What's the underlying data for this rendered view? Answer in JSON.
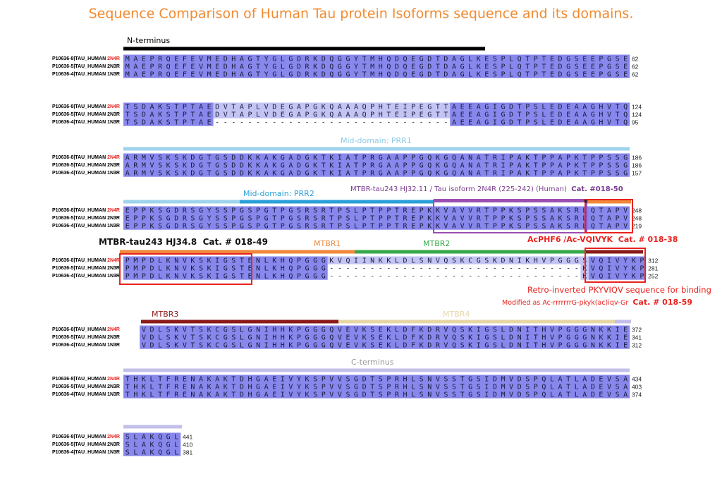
{
  "title": "Sequence Comparison of Human Tau protein Isoforms sequence and its domains.",
  "isoforms": [
    {
      "id": "P10636-8|TAU_HUMAN",
      "name": "2N4R",
      "color": "#e8231f"
    },
    {
      "id": "P10636-5|TAU_HUMAN",
      "name": "2N3R",
      "color": "#000000"
    },
    {
      "id": "P10636-4|TAU_HUMAN",
      "name": "1N3R",
      "color": "#000000"
    }
  ],
  "blocks": [
    {
      "rows": [
        {
          "sequence": "MAEPRQEFEVMEDHAGTYGLGDRKDQGGYTMHQDQEGDTDAGLKESPLQTPTEDGSEEPGSE",
          "end": 62
        },
        {
          "sequence": "MAEPRQEFEVMEDHAGTYGLGDRKDQGGYTMHQDQEGDTDAGLKESPLQTPTEDGSEEPGSE",
          "end": 62
        },
        {
          "sequence": "MAEPRQEFEVMEDHAGTYGLGDRKDQGGYTMHQDQEGDTDAGLKESPLQTPTEDGSEEPGSE",
          "end": 62
        }
      ]
    },
    {
      "rows": [
        {
          "sequence": "TSDAKSTPTAEDVTAPLVDEGAPGKQAAAQPHTEIPEGTTAEEAGIGDTPSLEDEAAGHVTQ",
          "end": 124
        },
        {
          "sequence": "TSDAKSTPTAEDVTAPLVDEGAPGKQAAAQPHTEIPEGTTAEEAGIGDTPSLEDEAAGHVTQ",
          "end": 124
        },
        {
          "sequence": "TSDAKSTPTAE-----------------------------AEEAGIGDTPSLEDEAAGHVTQ",
          "end": 95
        }
      ]
    },
    {
      "rows": [
        {
          "sequence": "ARMVSKSKDGTGSDDKKAKGADGKTKIATPRGAAPPGQKGQANATRIPAKTPPAPKTPPSSG",
          "end": 186
        },
        {
          "sequence": "ARMVSKSKDGTGSDDKKAKGADGKTKIATPRGAAPPGQKGQANATRIPAKTPPAPKTPPSSG",
          "end": 186
        },
        {
          "sequence": "ARMVSKSKDGTGSDDKKAKGADGKTKIATPRGAAPPGQKGQANATRIPAKTPPAPKTPPSSG",
          "end": 157
        }
      ]
    },
    {
      "rows": [
        {
          "sequence": "EPPKSGDRSGYSSPGSPGTPGSRSRTPSLPTPPTREPKKVAVVRTPPKSPSSAKSRLQTAPV",
          "end": 248
        },
        {
          "sequence": "EPPKSGDRSGYSSPGSPGTPGSRSRTPSLPTPPTREPKKVAVVRTPPKSPSSAKSRLQTAPV",
          "end": 248
        },
        {
          "sequence": "EPPKSGDRSGYSSPGSPGTPGSRSRTPSLPTPPTREPKKVAVVRTPPKSPSSAKSRLQTAPV",
          "end": 219
        }
      ]
    },
    {
      "rows": [
        {
          "sequence": "PMPDLKNVKSKIGSTENLKHQPGGGKVQIINKKLDLSNVQSKCGSKDNIKHVPGGGSVQIVYKP",
          "end": 312
        },
        {
          "sequence": "PMPDLKNVKSKIGSTENLKHQPGGG-------------------------------KVQIVYKP",
          "end": 281
        },
        {
          "sequence": "PMPDLKNVKSKIGSTENLKHQPGGG-------------------------------KVQIVYKP",
          "end": 252
        }
      ]
    },
    {
      "rows": [
        {
          "sequence": "VDLSKVTSKCGSLGNIHHKPGGGQVEVKSEKLDFKDRVQSKIGSLDNITHVPGGGNKKIE",
          "end": 372
        },
        {
          "sequence": "VDLSKVTSKCGSLGNIHHKPGGGQVEVKSEKLDFKDRVQSKIGSLDNITHVPGGGNKKIE",
          "end": 341
        },
        {
          "sequence": "VDLSKVTSKCGSLGNIHHKPGGGQVEVKSEKLDFKDRVQSKIGSLDNITHVPGGGNKKIE",
          "end": 312
        }
      ]
    },
    {
      "rows": [
        {
          "sequence": "THKLTFRENAKAKTDHGAEIVYKSPVVSGDTSPRHLSNVSSTGSIDMVDSPQLATLADEVSA",
          "end": 434
        },
        {
          "sequence": "THKLTFRENAKAKTDHGAEIVYKSPVVSGDTSPRHLSNVSSTGSIDMVDSPQLATLADEVSA",
          "end": 403
        },
        {
          "sequence": "THKLTFRENAKAKTDHGAEIVYKSPVVSGDTSPRHLSNVSSTGSIDMVDSPQLATLADEVSA",
          "end": 374
        }
      ]
    },
    {
      "rows": [
        {
          "sequence": "SLAKQGL",
          "end": 441
        },
        {
          "sequence": "SLAKQGL",
          "end": 410
        },
        {
          "sequence": "SLAKQGL",
          "end": 381
        }
      ]
    }
  ],
  "domains": [
    {
      "name": "N-terminus",
      "color": "#000000"
    },
    {
      "name": "Mid-domain: PRR1",
      "color": "#9fd3ec"
    },
    {
      "name": "Mid-domain: PRR2",
      "color": "#2a9fd8"
    },
    {
      "name": "MTBR1",
      "color": "#f0883a"
    },
    {
      "name": "MTBR2",
      "color": "#36a84a"
    },
    {
      "name": "MTBR3",
      "color": "#8b1a1a"
    },
    {
      "name": "MTBR4",
      "color": "#e6d6a6"
    },
    {
      "name": "C-terminus",
      "color": "#c2c0ea"
    }
  ],
  "annotations": [
    {
      "text": "MTBR-tau243 HJ32.11 / Tau isoform 2N4R (225-242) (Human)",
      "catalog": "Cat. #018-50"
    },
    {
      "text": "MTBR-tau243 HJ34.8",
      "catalog": "Cat. # 018-49"
    },
    {
      "text": "AcPHF6 /Ac-VQIVYK",
      "catalog": "Cat. # 018-38"
    },
    {
      "text": "Retro-inverted PKYVIQV sequence for binding"
    },
    {
      "text": "Modified as Ac-rrrrrrrG-pkyk(ac)iqv-Gr",
      "catalog": "Cat. # 018-59"
    },
    {
      "text": "*"
    }
  ]
}
